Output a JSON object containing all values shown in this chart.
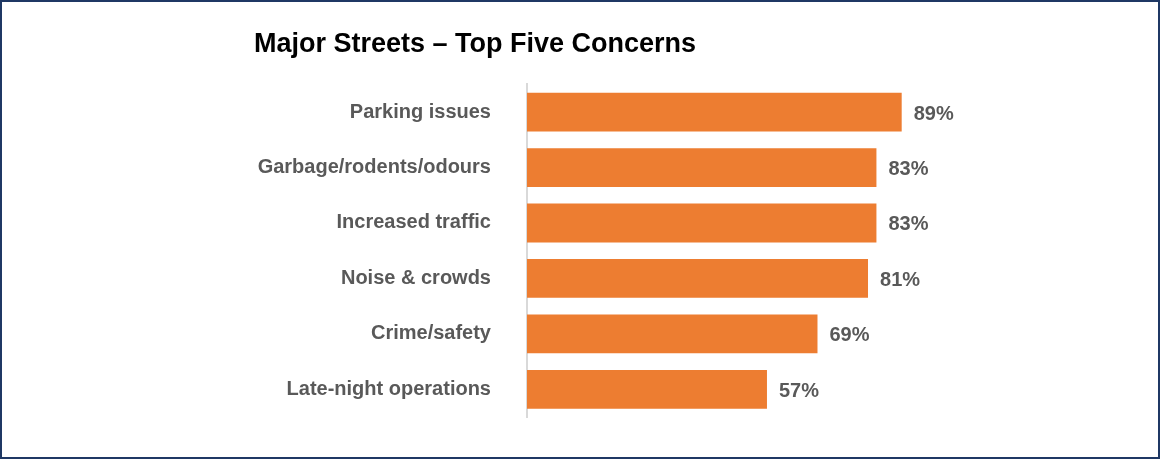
{
  "chart_data": {
    "type": "bar",
    "orientation": "horizontal",
    "title": "Major Streets – Top Five Concerns",
    "categories": [
      "Parking issues",
      "Garbage/rodents/odours",
      "Increased traffic",
      "Noise & crowds",
      "Crime/safety",
      "Late-night operations"
    ],
    "values": [
      89,
      83,
      83,
      81,
      69,
      57
    ],
    "color": "#ed7d31",
    "value_labels": [
      "89%",
      "83%",
      "83%",
      "81%",
      "69%",
      "57%"
    ]
  }
}
